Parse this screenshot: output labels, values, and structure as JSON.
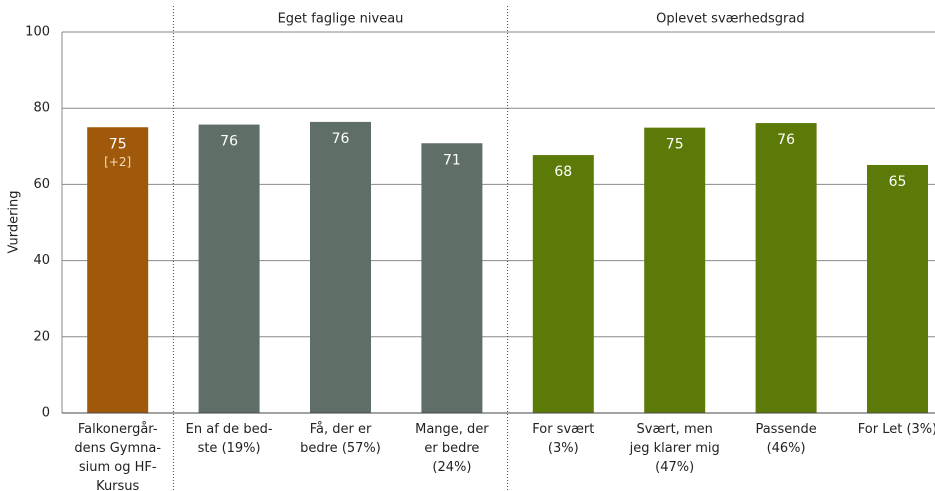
{
  "chart_data": {
    "type": "bar",
    "y_label": "Vurdering",
    "categories": [
      "Falkonergår-\ndens Gymna-\nsium og HF-\nKursus",
      "En af de bed-\nste (19%)",
      "Få, der er\nbedre (57%)",
      "Mange, der\ner bedre\n(24%)",
      "For svært\n(3%)",
      "Svært, men\njeg klarer mig\n(47%)",
      "Passende\n(46%)",
      "For Let (3%)"
    ],
    "values": [
      75,
      75.7,
      76.4,
      70.8,
      67.7,
      74.9,
      76.1,
      65.1
    ],
    "value_labels": [
      "75",
      "76",
      "76",
      "71",
      "68",
      "75",
      "76",
      "65"
    ],
    "value_annotations": [
      "[+2]",
      null,
      null,
      null,
      null,
      null,
      null,
      null
    ],
    "colors": [
      "#a0580a",
      "#5f6e66",
      "#5f6e66",
      "#5f6e66",
      "#5c7a07",
      "#5c7a07",
      "#5c7a07",
      "#5c7a07"
    ],
    "groups": [
      {
        "label": "Eget faglige niveau",
        "start": 1,
        "end": 3
      },
      {
        "label": "Oplevet sværhedsgrad",
        "start": 4,
        "end": 7
      }
    ],
    "ylim": [
      0,
      100
    ],
    "yticks": [
      0,
      20,
      40,
      60,
      80,
      100
    ],
    "grid": true
  }
}
